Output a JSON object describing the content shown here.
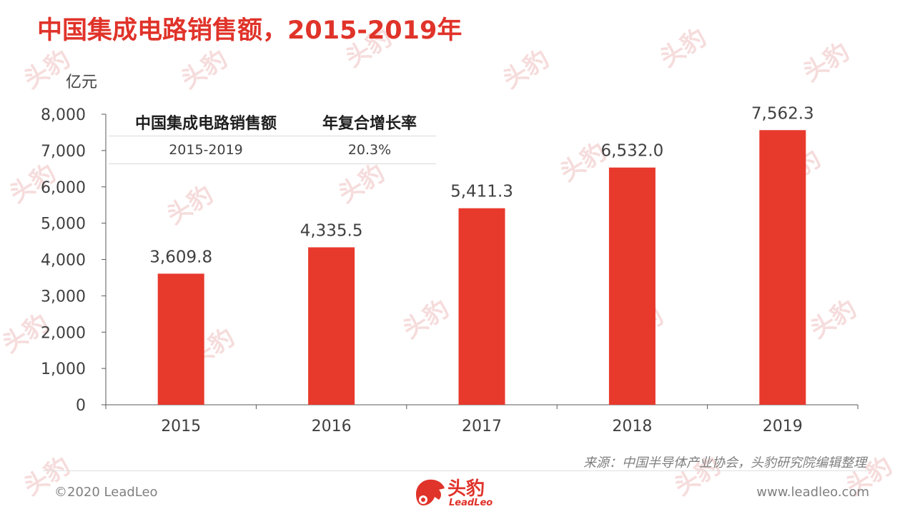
{
  "title": "中国集成电路销售额，2015-2019年",
  "table": {
    "headers": [
      "中国集成电路销售额",
      "年复合增长率"
    ],
    "rows": [
      [
        "2015-2019",
        "20.3%"
      ]
    ]
  },
  "source": "来源：中国半导体产业协会，头豹研究院编辑整理",
  "footer": {
    "copyright": "©2020 LeadLeo",
    "website": "www.leadleo.com",
    "logo_cn": "头豹",
    "logo_en": "LeadLeo"
  },
  "watermark": {
    "cn": "头豹",
    "en": "LeadLeo"
  },
  "colors": {
    "bar": "#e8392d",
    "title": "#e0332a",
    "axis": "#404040"
  },
  "chart_data": {
    "type": "bar",
    "categories": [
      "2015",
      "2016",
      "2017",
      "2018",
      "2019"
    ],
    "values": [
      3609.8,
      4335.5,
      5411.3,
      6532.0,
      7562.3
    ],
    "data_labels": [
      "3,609.8",
      "4,335.5",
      "5,411.3",
      "6,532.0",
      "7,562.3"
    ],
    "ylabel": "亿元",
    "ylim": [
      0,
      8000
    ],
    "yticks": [
      0,
      1000,
      2000,
      3000,
      4000,
      5000,
      6000,
      7000,
      8000
    ],
    "ytick_labels": [
      "0",
      "1,000",
      "2,000",
      "3,000",
      "4,000",
      "5,000",
      "6,000",
      "7,000",
      "8,000"
    ],
    "grid": false,
    "legend": "none"
  }
}
